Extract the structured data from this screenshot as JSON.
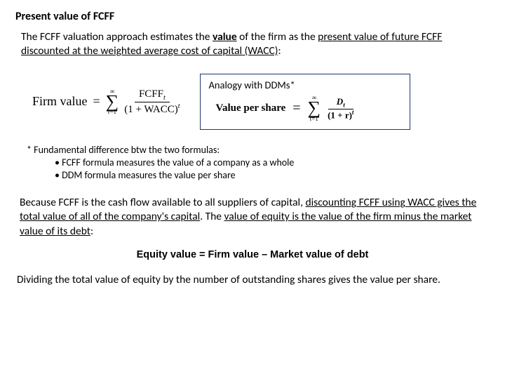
{
  "title": "Present value of FCFF",
  "intro": {
    "part1": "The FCFF valuation approach estimates the ",
    "value_word": "value",
    "part2": " of the firm as the ",
    "pv_phrase": "present value of future FCFF discounted at the weighted average cost of capital (WACC)",
    "part3": ":"
  },
  "formula_firm": {
    "label": "Firm value",
    "eq": "=",
    "sum_top": "∞",
    "sum_bot_a": "t",
    "sum_bot_b": "=1",
    "frac_top_a": "FCFF",
    "frac_top_sub": "t",
    "frac_bot_a": "(1 + WACC)",
    "frac_bot_sup": "t"
  },
  "analogy": {
    "title": "Analogy with DDMs*",
    "label": "Value per share",
    "eq": "=",
    "sum_top": "∞",
    "sum_bot": "t=1",
    "frac_top_a": "D",
    "frac_top_sub": "t",
    "frac_bot_a": "(1 + r)",
    "frac_bot_sup": "t"
  },
  "footnote": {
    "lead": "* Fundamental difference btw the two formulas:",
    "b1": "• FCFF formula measures the value of a company as a whole",
    "b2": "• DDM formula measures the value per share"
  },
  "para2": {
    "part1": "Because FCFF is the cash flow available to all suppliers of capital, ",
    "u1": "discounting FCFF using WACC gives the total value of all of the company's capital",
    "part2": ". The ",
    "u2": "value of equity is the value of the firm minus the market value of its debt",
    "part3": ":"
  },
  "equity_formula": "Equity value = Firm value – Market value of debt",
  "closing": "Dividing the total value of equity by the number of outstanding shares gives the value per share."
}
